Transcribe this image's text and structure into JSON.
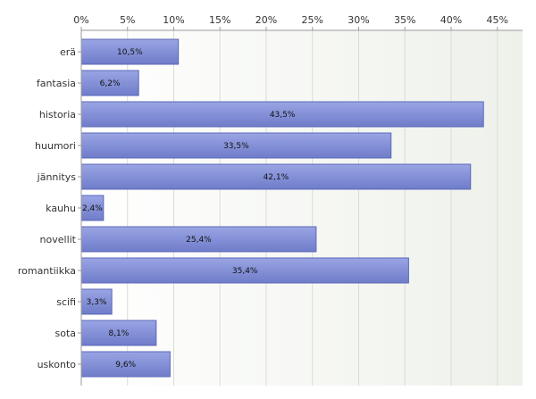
{
  "chart_data": {
    "type": "bar",
    "orientation": "horizontal",
    "categories": [
      "erä",
      "fantasia",
      "historia",
      "huumori",
      "jännitys",
      "kauhu",
      "novellit",
      "romantiikka",
      "scifi",
      "sota",
      "uskonto"
    ],
    "values": [
      10.5,
      6.2,
      43.5,
      33.5,
      42.1,
      2.4,
      25.4,
      35.4,
      3.3,
      8.1,
      9.6
    ],
    "value_labels": [
      "10,5%",
      "6,2%",
      "43,5%",
      "33,5%",
      "42,1%",
      "2,4%",
      "25,4%",
      "35,4%",
      "3,3%",
      "8,1%",
      "9,6%"
    ],
    "x_ticks": [
      "0%",
      "5%",
      "10%",
      "15%",
      "20%",
      "25%",
      "30%",
      "35%",
      "40%",
      "45%"
    ],
    "xlim": [
      0,
      48
    ],
    "x_axis_position": "top",
    "grid": true,
    "legend": "none",
    "colors": {
      "bar_fill": "#7f8cd6",
      "bar_stroke": "#5a68b8",
      "plot_bg": "#f1f3ee",
      "grid": "#d9ddd3",
      "axis": "#9a9a9a"
    }
  }
}
